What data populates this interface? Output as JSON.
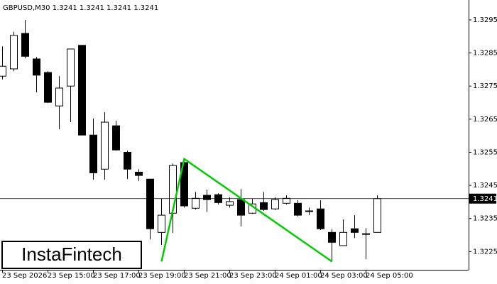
{
  "chart_data": {
    "type": "candlestick",
    "title": "GBPUSD,M30  1.3241 1.3241 1.3241 1.3241",
    "logo": "InstaFintech",
    "categories": [
      "23 Sep 2026",
      null,
      null,
      null,
      "23 Sep 15:00",
      null,
      null,
      null,
      "23 Sep 17:00",
      null,
      null,
      null,
      "23 Sep 19:00",
      null,
      null,
      null,
      "23 Sep 21:00",
      null,
      null,
      null,
      "23 Sep 23:00",
      null,
      null,
      null,
      "24 Sep 01:00",
      null,
      null,
      null,
      "24 Sep 03:00",
      null,
      null,
      null,
      "24 Sep 05:00",
      null
    ],
    "open": [
      1.3278,
      1.32802,
      1.32909,
      1.32832,
      1.32791,
      1.3269,
      1.3275,
      1.32873,
      1.32602,
      1.32499,
      1.3263,
      1.3255,
      1.3249,
      1.32469,
      1.32308,
      1.32366,
      1.32519,
      1.32381,
      1.3242,
      1.32422,
      1.3239,
      1.32407,
      1.32366,
      1.32398,
      1.32379,
      1.32396,
      1.32396,
      1.32373,
      1.32379,
      1.32308,
      1.32268,
      1.32319,
      1.32304,
      1.32308
    ],
    "high": [
      1.3287,
      1.32914,
      1.3295,
      1.32838,
      1.32795,
      1.3278,
      1.32862,
      1.32873,
      1.32652,
      1.32671,
      1.32645,
      1.32555,
      1.32499,
      1.32469,
      1.32411,
      1.32516,
      1.32527,
      1.3243,
      1.32437,
      1.32426,
      1.32414,
      1.32439,
      1.32409,
      1.3243,
      1.32414,
      1.3242,
      1.32405,
      1.32383,
      1.32405,
      1.32317,
      1.32347,
      1.3236,
      1.32321,
      1.3242
    ],
    "low": [
      1.3277,
      1.32795,
      1.32834,
      1.32731,
      1.32699,
      1.3262,
      1.32641,
      1.32602,
      1.32467,
      1.32467,
      1.32555,
      1.32469,
      1.32463,
      1.32287,
      1.3227,
      1.32306,
      1.32383,
      1.32377,
      1.3237,
      1.32392,
      1.32383,
      1.32326,
      1.32364,
      1.32373,
      1.32375,
      1.32392,
      1.32356,
      1.3236,
      1.32315,
      1.3222,
      1.32268,
      1.32291,
      1.32227,
      1.32308
    ],
    "close": [
      1.3281,
      1.32903,
      1.3284,
      1.32783,
      1.32701,
      1.32744,
      1.32862,
      1.32602,
      1.32488,
      1.32641,
      1.32557,
      1.32499,
      1.3248,
      1.32319,
      1.3236,
      1.3251,
      1.32388,
      1.32411,
      1.32407,
      1.32398,
      1.32401,
      1.3236,
      1.32394,
      1.32377,
      1.32407,
      1.32411,
      1.3236,
      1.32373,
      1.32319,
      1.32278,
      1.32308,
      1.32308,
      1.32304,
      1.3241
    ],
    "ylim": [
      1.32195,
      1.3301
    ],
    "yticks": [
      1.3225,
      1.3235,
      1.3245,
      1.3255,
      1.3265,
      1.3275,
      1.3285,
      1.3295
    ],
    "current_price": 1.3241,
    "up_color": "#ffffff",
    "down_color": "#000000",
    "pattern": {
      "color": "#00cc00",
      "x": [
        14,
        16,
        29
      ],
      "y": [
        1.3222,
        1.3253,
        1.3222
      ]
    }
  }
}
